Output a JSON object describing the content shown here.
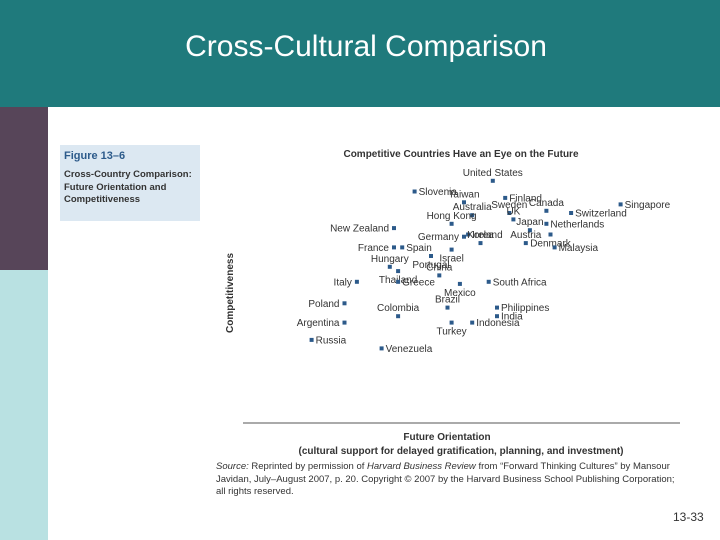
{
  "slide": {
    "title": "Cross-Cultural Comparison",
    "page_number": "13-33"
  },
  "figure": {
    "number": "Figure 13–6",
    "caption": "Cross-Country Comparison: Future Orientation and Competitiveness"
  },
  "source": {
    "label": "Source:",
    "text_before": "Reprinted by permission of",
    "journal": "Harvard Business Review",
    "text_after": "from “Forward Thinking Cultures” by Mansour Javidan, July–August 2007, p. 20. Copyright © 2007 by the Harvard Business School Publishing Corporation; all rights reserved."
  },
  "colors": {
    "header": "#1f7a7c",
    "side_band_dark": "#574559",
    "side_band_light": "#b9e1e2",
    "figure_box": "#dce8f2",
    "marker": "#2c5a8a"
  },
  "chart_data": {
    "type": "scatter",
    "title": "Competitive Countries Have an Eye on the Future",
    "xlabel": "Future Orientation",
    "xlabel_sub": "(cultural support for delayed gratification, planning, and investment)",
    "ylabel": "Competitiveness",
    "grid": false,
    "legend": "none",
    "xlim": [
      0,
      100
    ],
    "ylim": [
      0,
      100
    ],
    "points": [
      {
        "label": "Slovenia",
        "x": 38,
        "y": 90,
        "label_pos": "right"
      },
      {
        "label": "United States",
        "x": 57,
        "y": 95,
        "label_pos": "above"
      },
      {
        "label": "Taiwan",
        "x": 50,
        "y": 85,
        "label_pos": "above"
      },
      {
        "label": "Finland",
        "x": 60,
        "y": 87,
        "label_pos": "right"
      },
      {
        "label": "Singapore",
        "x": 88,
        "y": 84,
        "label_pos": "right"
      },
      {
        "label": "Australia",
        "x": 52,
        "y": 79,
        "label_pos": "above"
      },
      {
        "label": "Sweden",
        "x": 61,
        "y": 80,
        "label_pos": "above"
      },
      {
        "label": "Canada",
        "x": 70,
        "y": 81,
        "label_pos": "above"
      },
      {
        "label": "Switzerland",
        "x": 76,
        "y": 80,
        "label_pos": "right"
      },
      {
        "label": "UK",
        "x": 62,
        "y": 77,
        "label_pos": "above"
      },
      {
        "label": "Netherlands",
        "x": 70,
        "y": 75,
        "label_pos": "right"
      },
      {
        "label": "Hong Kong",
        "x": 47,
        "y": 75,
        "label_pos": "above"
      },
      {
        "label": "New Zealand",
        "x": 33,
        "y": 73,
        "label_pos": "left"
      },
      {
        "label": "Japan",
        "x": 66,
        "y": 72,
        "label_pos": "above"
      },
      {
        "label": "Denmark",
        "x": 71,
        "y": 70,
        "label_pos": "below"
      },
      {
        "label": "Ireland",
        "x": 51,
        "y": 70,
        "label_pos": "right"
      },
      {
        "label": "Germany",
        "x": 50,
        "y": 69,
        "label_pos": "left"
      },
      {
        "label": "Korea",
        "x": 54,
        "y": 66,
        "label_pos": "above"
      },
      {
        "label": "Austria",
        "x": 65,
        "y": 66,
        "label_pos": "above"
      },
      {
        "label": "Malaysia",
        "x": 72,
        "y": 64,
        "label_pos": "right"
      },
      {
        "label": "France",
        "x": 33,
        "y": 64,
        "label_pos": "left"
      },
      {
        "label": "Spain",
        "x": 35,
        "y": 64,
        "label_pos": "right"
      },
      {
        "label": "Israel",
        "x": 47,
        "y": 63,
        "label_pos": "below"
      },
      {
        "label": "Portugal",
        "x": 42,
        "y": 60,
        "label_pos": "below"
      },
      {
        "label": "Hungary",
        "x": 32,
        "y": 55,
        "label_pos": "above"
      },
      {
        "label": "Thailand",
        "x": 34,
        "y": 53,
        "label_pos": "below"
      },
      {
        "label": "China",
        "x": 44,
        "y": 51,
        "label_pos": "above"
      },
      {
        "label": "Italy",
        "x": 24,
        "y": 48,
        "label_pos": "left"
      },
      {
        "label": "Greece",
        "x": 34,
        "y": 48,
        "label_pos": "right"
      },
      {
        "label": "South Africa",
        "x": 56,
        "y": 48,
        "label_pos": "right"
      },
      {
        "label": "Mexico",
        "x": 49,
        "y": 47,
        "label_pos": "below"
      },
      {
        "label": "Poland",
        "x": 21,
        "y": 38,
        "label_pos": "left"
      },
      {
        "label": "Brazil",
        "x": 46,
        "y": 36,
        "label_pos": "above"
      },
      {
        "label": "Philippines",
        "x": 58,
        "y": 36,
        "label_pos": "right"
      },
      {
        "label": "Colombia",
        "x": 34,
        "y": 32,
        "label_pos": "above"
      },
      {
        "label": "India",
        "x": 58,
        "y": 32,
        "label_pos": "right"
      },
      {
        "label": "Argentina",
        "x": 21,
        "y": 29,
        "label_pos": "left"
      },
      {
        "label": "Turkey",
        "x": 47,
        "y": 29,
        "label_pos": "below"
      },
      {
        "label": "Indonesia",
        "x": 52,
        "y": 29,
        "label_pos": "right"
      },
      {
        "label": "Russia",
        "x": 13,
        "y": 21,
        "label_pos": "right"
      },
      {
        "label": "Venezuela",
        "x": 30,
        "y": 17,
        "label_pos": "right"
      }
    ]
  }
}
